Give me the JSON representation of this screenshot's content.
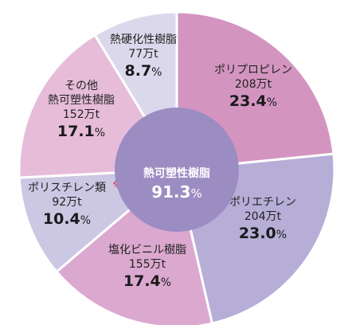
{
  "chart_data": {
    "type": "pie",
    "style": "donut",
    "center": {
      "label": "熱可塑性樹脂",
      "percent": "91.3",
      "unit": "%",
      "color": "#9b8cc2"
    },
    "slices": [
      {
        "name": "ポリプロピレン",
        "amount": "208万t",
        "percent": "23.4",
        "value": 23.4,
        "color": "#d395c0"
      },
      {
        "name": "ポリエチレン",
        "amount": "204万t",
        "percent": "23.0",
        "value": 23.0,
        "color": "#b7aed7"
      },
      {
        "name": "塩化ビニル樹脂",
        "amount": "155万t",
        "percent": "17.4",
        "value": 17.4,
        "color": "#dba8cf"
      },
      {
        "name": "ポリスチレン類",
        "amount": "92万t",
        "percent": "10.4",
        "value": 10.4,
        "color": "#ccc7e3",
        "mark": "※"
      },
      {
        "name": "その他\n熱可塑性樹脂",
        "amount": "152万t",
        "percent": "17.1",
        "value": 17.1,
        "color": "#e6bcd9"
      },
      {
        "name": "熱硬化性樹脂",
        "amount": "77万t",
        "percent": "8.7",
        "value": 8.7,
        "color": "#dcd8ec"
      }
    ],
    "percent_unit": "%"
  }
}
